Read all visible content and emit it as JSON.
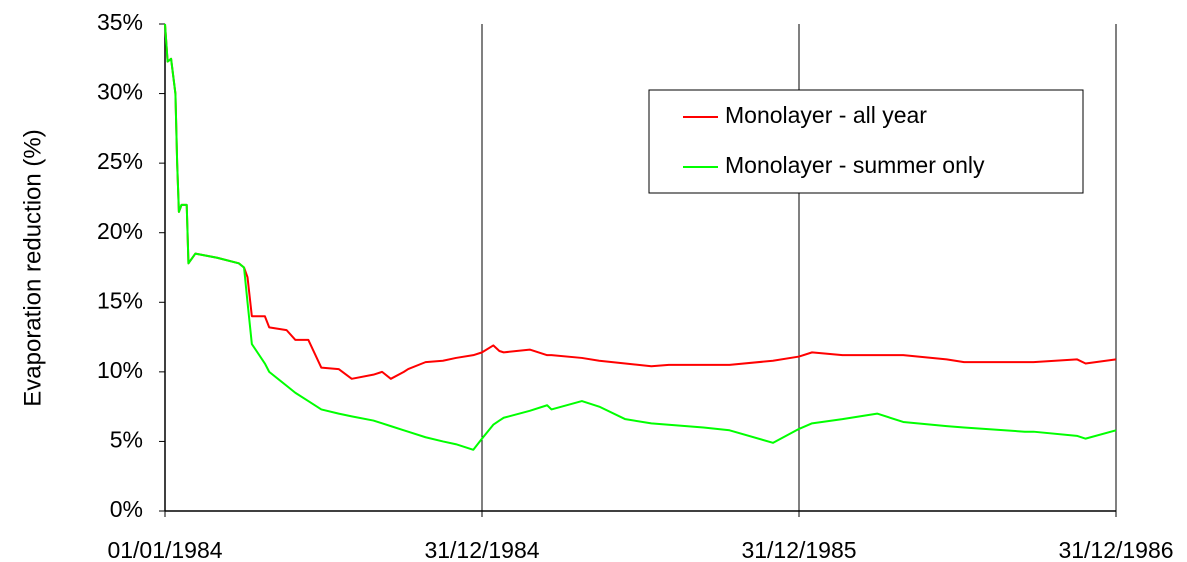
{
  "chart_data": {
    "type": "line",
    "ylabel": "Evaporation reduction (%)",
    "x": [
      "01/01/1984",
      "04/01/1984",
      "08/01/1984",
      "13/01/1984",
      "15/01/1984",
      "17/01/1984",
      "20/01/1984",
      "26/01/1984",
      "28/01/1984",
      "05/02/1984",
      "01/03/1984",
      "26/03/1984",
      "01/04/1984",
      "05/04/1984",
      "10/04/1984",
      "25/04/1984",
      "30/04/1984",
      "20/05/1984",
      "30/05/1984",
      "14/06/1984",
      "29/06/1984",
      "19/07/1984",
      "03/08/1984",
      "28/08/1984",
      "07/09/1984",
      "17/09/1984",
      "02/10/1984",
      "07/10/1984",
      "27/10/1984",
      "16/11/1984",
      "01/12/1984",
      "21/12/1984",
      "31/12/1984",
      "13/01/1985",
      "20/01/1985",
      "25/01/1985",
      "24/02/1985",
      "16/03/1985",
      "21/03/1985",
      "25/04/1985",
      "15/05/1985",
      "14/06/1985",
      "14/07/1985",
      "03/08/1985",
      "12/09/1985",
      "12/10/1985",
      "01/12/1985",
      "31/12/1985",
      "15/01/1986",
      "19/02/1986",
      "31/03/1986",
      "30/04/1986",
      "19/06/1986",
      "09/07/1986",
      "17/09/1986",
      "27/09/1986",
      "16/11/1986",
      "26/11/1986",
      "31/12/1986"
    ],
    "series": [
      {
        "name": "Monolayer - all year",
        "color": "#ff0000",
        "values": [
          35,
          32.3,
          32.5,
          30,
          25,
          21.5,
          22,
          22,
          17.8,
          18.5,
          18.2,
          17.8,
          17.5,
          16.8,
          14,
          14,
          13.2,
          13,
          12.3,
          12.3,
          10.3,
          10.2,
          9.5,
          9.8,
          10,
          9.5,
          10,
          10.2,
          10.7,
          10.8,
          11,
          11.2,
          11.4,
          11.9,
          11.5,
          11.4,
          11.6,
          11.2,
          11.2,
          11,
          10.8,
          10.6,
          10.4,
          10.5,
          10.5,
          10.5,
          10.8,
          11.1,
          11.4,
          11.2,
          11.2,
          11.2,
          10.9,
          10.7,
          10.7,
          10.7,
          10.9,
          10.6,
          10.9
        ]
      },
      {
        "name": "Monolayer - summer only",
        "color": "#00ff00",
        "values": [
          35,
          32.3,
          32.5,
          30,
          25,
          21.5,
          22,
          22,
          17.8,
          18.5,
          18.2,
          17.8,
          17.5,
          15,
          12,
          10.6,
          10,
          9,
          8.5,
          7.9,
          7.3,
          7,
          6.8,
          6.5,
          6.3,
          6.1,
          5.8,
          5.7,
          5.3,
          5,
          4.8,
          4.4,
          5.2,
          6.2,
          6.5,
          6.7,
          7.2,
          7.6,
          7.3,
          7.9,
          7.5,
          6.6,
          6.3,
          6.2,
          6,
          5.8,
          4.9,
          5.9,
          6.3,
          6.6,
          7,
          6.4,
          6.1,
          6,
          5.7,
          5.7,
          5.4,
          5.2,
          5.8
        ]
      }
    ],
    "xlim": [
      "01/01/1984",
      "31/12/1986"
    ],
    "xticks": [
      "01/01/1984",
      "31/12/1984",
      "31/12/1985",
      "31/12/1986"
    ],
    "ylim": [
      0,
      35
    ],
    "yticks": [
      {
        "value": 0,
        "label": "0%"
      },
      {
        "value": 5,
        "label": "5%"
      },
      {
        "value": 10,
        "label": "10%"
      },
      {
        "value": 15,
        "label": "15%"
      },
      {
        "value": 20,
        "label": "20%"
      },
      {
        "value": 25,
        "label": "25%"
      },
      {
        "value": 30,
        "label": "30%"
      },
      {
        "value": 35,
        "label": "35%"
      }
    ],
    "grid": "x",
    "legend": "upper right"
  }
}
